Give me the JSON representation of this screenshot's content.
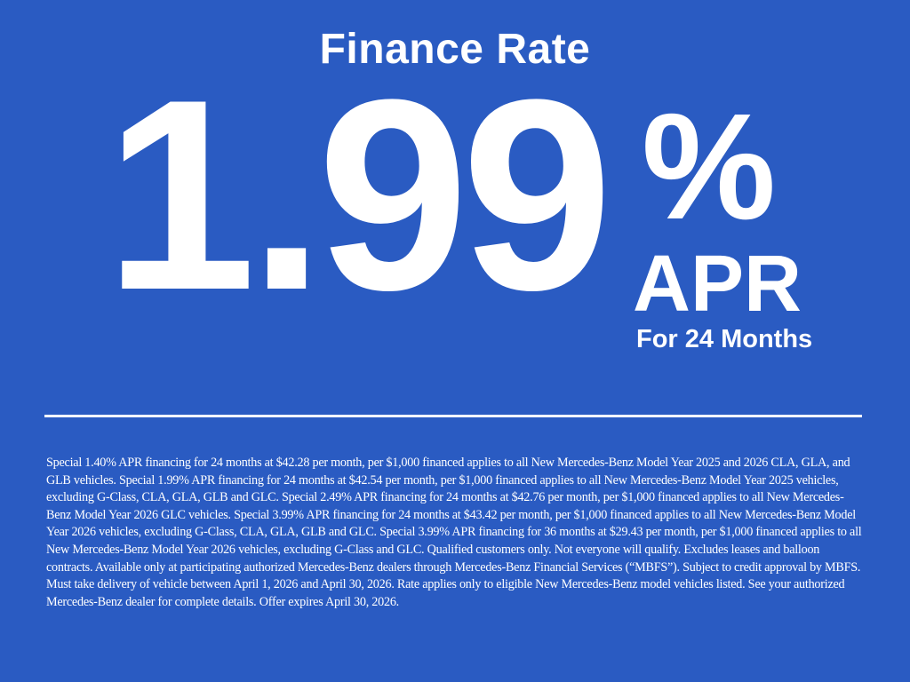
{
  "title": "Finance Rate",
  "rate": {
    "value": "1.99",
    "percent_sign": "%",
    "unit": "APR",
    "term": "For 24 Months"
  },
  "disclaimer": "Special 1.40% APR financing for 24 months at $42.28 per month, per $1,000 financed applies to all New Mercedes-Benz Model Year 2025 and 2026 CLA, GLA, and GLB vehicles. Special 1.99% APR financing for 24 months at $42.54 per month, per $1,000 financed applies to all New Mercedes-Benz Model Year 2025 vehicles, excluding G-Class, CLA, GLA, GLB and GLC. Special 2.49% APR financing for 24 months at $42.76 per month, per $1,000 financed applies to all New Mercedes-Benz Model Year 2026 GLC vehicles. Special 3.99% APR financing for 24 months at $43.42 per month, per $1,000 financed applies to all New Mercedes-Benz Model Year 2026 vehicles, excluding G-Class, CLA, GLA, GLB and GLC. Special 3.99% APR financing for 36 months at $29.43 per month, per $1,000 financed applies to all New Mercedes-Benz Model Year 2026 vehicles, excluding G-Class and GLC. Qualified customers only. Not everyone will qualify. Excludes leases and balloon contracts. Available only at participating authorized Mercedes-Benz dealers through Mercedes-Benz Financial Services (“MBFS”). Subject to credit approval by MBFS. Must take delivery of vehicle between April 1, 2026 and April 30, 2026. Rate applies only to eligible New Mercedes-Benz model vehicles listed. See your authorized Mercedes-Benz dealer for complete details. Offer expires April 30, 2026.",
  "colors": {
    "background": "#2a5bc2",
    "text": "#ffffff"
  }
}
